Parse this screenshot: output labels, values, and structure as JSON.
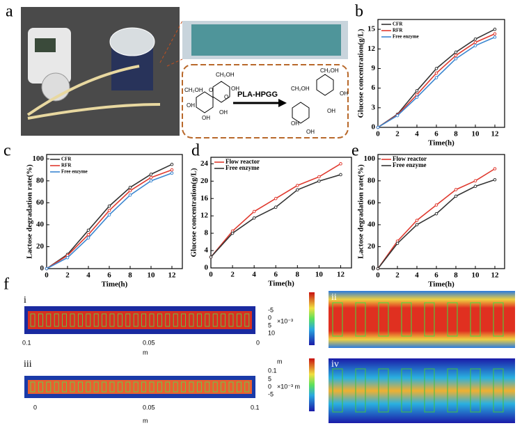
{
  "panel_labels": [
    "a",
    "b",
    "c",
    "d",
    "e",
    "f"
  ],
  "panel_a": {
    "reaction_label": "PLA-HPGG",
    "chem_labels": [
      "CH₂OH",
      "CH₂OH",
      "OH",
      "OH",
      "OH",
      "OH",
      "O",
      "O",
      "CH₂OH",
      "CH₂OH",
      "OH",
      "OH",
      "OH",
      "OH"
    ]
  },
  "chart_data": [
    {
      "type": "line",
      "xlabel": "Time(h)",
      "ylabel": "Glucose concentration(g/L)",
      "x": [
        0,
        2,
        4,
        6,
        8,
        10,
        12
      ],
      "xlim": [
        0,
        13
      ],
      "xticks": [
        0,
        2,
        4,
        6,
        8,
        10,
        12
      ],
      "ylim": [
        0,
        16.5
      ],
      "yticks": [
        0,
        3,
        6,
        9,
        12,
        15
      ],
      "legend": "upper left",
      "series": [
        {
          "name": "CFR",
          "color": "#333333",
          "values": [
            0,
            2,
            5.6,
            9,
            11.5,
            13.5,
            15
          ]
        },
        {
          "name": "RFR",
          "color": "#e03a2f",
          "values": [
            0,
            1.9,
            5,
            8.3,
            11,
            13,
            14.3
          ]
        },
        {
          "name": "Free enzyme",
          "color": "#3a86d0",
          "values": [
            0,
            1.8,
            4.6,
            7.6,
            10.5,
            12.5,
            13.8
          ]
        }
      ]
    },
    {
      "type": "line",
      "xlabel": "Time(h)",
      "ylabel": "Lactose degradation rate(%)",
      "x": [
        0,
        2,
        4,
        6,
        8,
        10,
        12
      ],
      "xlim": [
        0,
        13
      ],
      "xticks": [
        0,
        2,
        4,
        6,
        8,
        10,
        12
      ],
      "ylim": [
        0,
        104
      ],
      "yticks": [
        0,
        20,
        40,
        60,
        80,
        100
      ],
      "legend": "upper left",
      "series": [
        {
          "name": "CFR",
          "color": "#333333",
          "values": [
            0,
            13,
            35,
            57,
            74,
            86,
            95
          ]
        },
        {
          "name": "RFR",
          "color": "#e03a2f",
          "values": [
            0,
            12,
            31,
            53,
            71,
            83,
            90
          ]
        },
        {
          "name": "Free enzyme",
          "color": "#3a86d0",
          "values": [
            0,
            10,
            28,
            49,
            67,
            80,
            87
          ]
        }
      ]
    },
    {
      "type": "line",
      "xlabel": "Time(h)",
      "ylabel": "Glucose concentration(g/L)",
      "x": [
        0,
        2,
        4,
        6,
        8,
        10,
        12
      ],
      "xlim": [
        0,
        13
      ],
      "xticks": [
        0,
        2,
        4,
        6,
        8,
        10,
        12
      ],
      "ylim": [
        0,
        25.5
      ],
      "yticks": [
        0,
        4,
        8,
        12,
        16,
        20,
        24
      ],
      "legend": "upper left",
      "series": [
        {
          "name": "Flow reactor",
          "color": "#e03a2f",
          "values": [
            2.5,
            8.5,
            13,
            16,
            19,
            21,
            24
          ]
        },
        {
          "name": "Free enzyme",
          "color": "#333333",
          "values": [
            2.5,
            8,
            11.5,
            14,
            18,
            20,
            21.5
          ]
        }
      ]
    },
    {
      "type": "line",
      "xlabel": "Time(h)",
      "ylabel": "Lactose degradation rate(%)",
      "x": [
        0,
        2,
        4,
        6,
        8,
        10,
        12
      ],
      "xlim": [
        0,
        13
      ],
      "xticks": [
        0,
        2,
        4,
        6,
        8,
        10,
        12
      ],
      "ylim": [
        0,
        104
      ],
      "yticks": [
        0,
        20,
        40,
        60,
        80,
        100
      ],
      "legend": "upper left",
      "series": [
        {
          "name": "Flow reactor",
          "color": "#e03a2f",
          "values": [
            0,
            25,
            44,
            58,
            72,
            80,
            91
          ]
        },
        {
          "name": "Free enzyme",
          "color": "#333333",
          "values": [
            0,
            23,
            40,
            50,
            66,
            75,
            81
          ]
        }
      ]
    }
  ],
  "panel_f": {
    "sublabels": [
      "i",
      "ii",
      "iii",
      "iv"
    ],
    "texts": [
      "-5",
      "0",
      "5",
      "10",
      "×10⁻³",
      "0.1",
      "0.05",
      "0",
      "m",
      "m",
      "0.1",
      "5",
      "0",
      "-5",
      "×10⁻³ m",
      "0",
      "0.05",
      "0.1",
      "m"
    ]
  }
}
